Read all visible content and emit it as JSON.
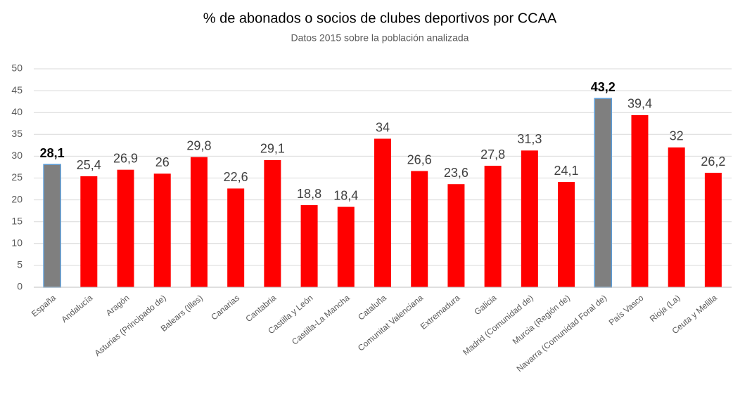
{
  "chart_data": {
    "type": "bar",
    "title": "% de abonados o socios de clubes deportivos por CCAA",
    "subtitle": "Datos 2015 sobre la población analizada",
    "categories": [
      "España",
      "Andalucía",
      "Aragón",
      "Asturias (Principado de)",
      "Balears (Illes)",
      "Canarias",
      "Cantabria",
      "Castilla y León",
      "Castilla-La Mancha",
      "Cataluña",
      "Comunitat Valenciana",
      "Extremadura",
      "Galicia",
      "Madrid (Comunidad de)",
      "Murcia (Región de)",
      "Navarra (Comunidad Foral de)",
      "País Vasco",
      "Rioja (La)",
      "Ceuta y Melilla"
    ],
    "values": [
      28.1,
      25.4,
      26.9,
      26,
      29.8,
      22.6,
      29.1,
      18.8,
      18.4,
      34,
      26.6,
      23.6,
      27.8,
      31.3,
      24.1,
      43.2,
      39.4,
      32,
      26.2
    ],
    "value_labels": [
      "28,1",
      "25,4",
      "26,9",
      "26",
      "29,8",
      "22,6",
      "29,1",
      "18,8",
      "18,4",
      "34",
      "26,6",
      "23,6",
      "27,8",
      "31,3",
      "24,1",
      "43,2",
      "39,4",
      "32",
      "26,2"
    ],
    "colors": [
      "#7f7f7f",
      "#ff0000",
      "#ff0000",
      "#ff0000",
      "#ff0000",
      "#ff0000",
      "#ff0000",
      "#ff0000",
      "#ff0000",
      "#ff0000",
      "#ff0000",
      "#ff0000",
      "#ff0000",
      "#ff0000",
      "#ff0000",
      "#7f7f7f",
      "#ff0000",
      "#ff0000",
      "#ff0000"
    ],
    "ylim": [
      0,
      50
    ],
    "yticks": [
      0,
      5,
      10,
      15,
      20,
      25,
      30,
      35,
      40,
      45,
      50
    ],
    "grid": true
  }
}
